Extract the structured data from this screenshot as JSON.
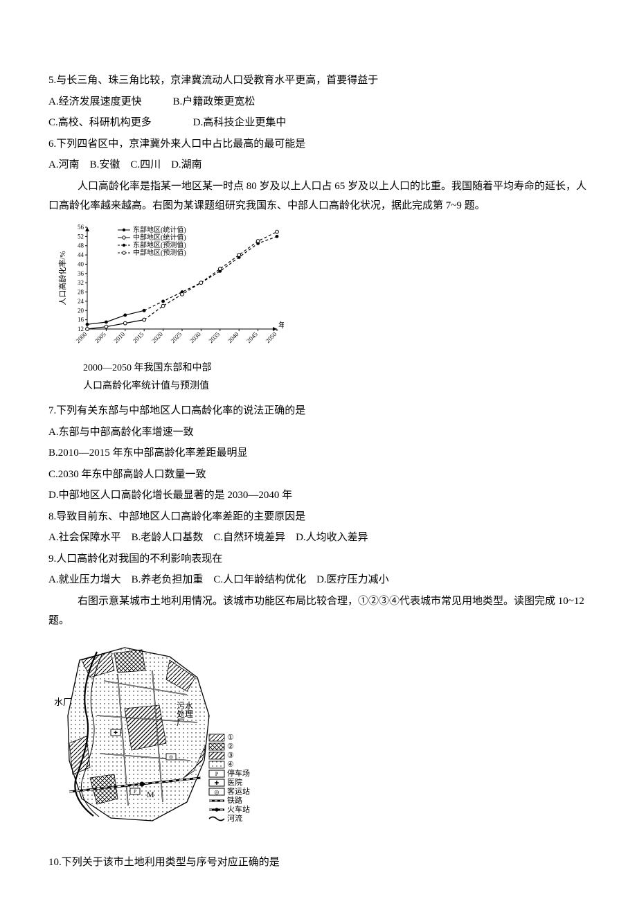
{
  "q5": {
    "stem": "5.与长三角、珠三角比较，京津冀流动人口受教育水平更高，首要得益于",
    "optAB": "A.经济发展速度更快　　　B.户籍政策更宽松",
    "optCD": "C.高校、科研机构更多　　　　D.高科技企业更集中"
  },
  "q6": {
    "stem": "6.下列四省区中，京津冀外来人口中占比最高的最可能是",
    "opts": "A.河南　B.安徽　C.四川　D.湖南"
  },
  "passage1": "人口高龄化率是指某一地区某一时点 80 岁及以上人口占 65 岁及以上人口的比重。我国随着平均寿命的延长，人口高龄化率越来越高。右图为某课题组研究我国东、中部人口高龄化状况，据此完成第 7~9 题。",
  "chart": {
    "type": "line",
    "y_label": "人口高龄化率/%",
    "x_label": "年份",
    "x_ticks": [
      "2000",
      "2005",
      "2010",
      "2015",
      "2020",
      "2025",
      "2030",
      "2035",
      "2040",
      "2045",
      "2050"
    ],
    "y_ticks": [
      12,
      16,
      20,
      24,
      28,
      32,
      36,
      40,
      44,
      48,
      52,
      56
    ],
    "ylim": [
      12,
      56
    ],
    "legend": [
      {
        "label": "东部地区(统计值)",
        "marker": "filled-circle",
        "dash": "solid"
      },
      {
        "label": "中部地区(统计值)",
        "marker": "open-circle",
        "dash": "solid"
      },
      {
        "label": "东部地区(预测值)",
        "marker": "filled-circle",
        "dash": "dashed"
      },
      {
        "label": "中部地区(预测值)",
        "marker": "open-circle",
        "dash": "dashed"
      }
    ],
    "series": {
      "east_stat": {
        "years": [
          2000,
          2005,
          2010,
          2015
        ],
        "vals": [
          14,
          15,
          18,
          20
        ],
        "marker": "filled-circle",
        "dash": "solid"
      },
      "central_stat": {
        "years": [
          2000,
          2005,
          2010,
          2015
        ],
        "vals": [
          12,
          13,
          14.5,
          16
        ],
        "marker": "open-circle",
        "dash": "solid"
      },
      "east_pred": {
        "years": [
          2015,
          2020,
          2025,
          2030,
          2035,
          2040,
          2045,
          2050
        ],
        "vals": [
          20,
          24,
          28,
          32,
          37,
          43,
          49,
          52
        ],
        "marker": "filled-circle",
        "dash": "dashed"
      },
      "central_pred": {
        "years": [
          2015,
          2020,
          2025,
          2030,
          2035,
          2040,
          2045,
          2050
        ],
        "vals": [
          16,
          22,
          27,
          32,
          38,
          44,
          50,
          54
        ],
        "marker": "open-circle",
        "dash": "dashed"
      }
    },
    "colors": {
      "line": "#000000",
      "bg": "#ffffff",
      "axis": "#000000",
      "text": "#000000"
    },
    "caption_l1": "2000—2050 年我国东部和中部",
    "caption_l2": "人口高龄化率统计值与预测值"
  },
  "q7": {
    "stem": "7.下列有关东部与中部地区人口高龄化率的说法正确的是",
    "a": "A.东部与中部高龄化率增速一致",
    "b": "B.2010—2015 年东中部高龄化率差距最明显",
    "c": "C.2030 年东中部高龄人口数量一致",
    "d": "D.中部地区人口高龄化增长最显著的是 2030—2040 年"
  },
  "q8": {
    "stem": "8.导致目前东、中部地区人口高龄化率差距的主要原因是",
    "opts": "A.社会保障水平　B.老龄人口基数　C.自然环境差异　D.人均收入差异"
  },
  "q9": {
    "stem": "9.人口高龄化对我国的不利影响表现在",
    "opts": "A.就业压力增大　B.养老负担加重　C.人口年龄结构优化　D.医疗压力减小"
  },
  "passage2": "右图示意某城市土地利用情况。该城市功能区布局比较合理，①②③④代表城市常见用地类型。读图完成 10~12 题。",
  "map": {
    "type": "infographic",
    "labels": {
      "water_plant": "水厂",
      "sewage_plant": "污水\n处理\n厂",
      "M": "M"
    },
    "legend_items": [
      {
        "sym": "hatch-diag",
        "text": "①"
      },
      {
        "sym": "hatch-cross",
        "text": "②"
      },
      {
        "sym": "hatch-dense",
        "text": "③"
      },
      {
        "sym": "dots",
        "text": "④"
      },
      {
        "sym": "box-P",
        "text": "停车场"
      },
      {
        "sym": "box-plus",
        "text": "医院"
      },
      {
        "sym": "box-circles",
        "text": "客运站"
      },
      {
        "sym": "rail",
        "text": "铁路"
      },
      {
        "sym": "rail-dot",
        "text": "火车站"
      },
      {
        "sym": "river",
        "text": "河流"
      }
    ],
    "colors": {
      "stroke": "#000000",
      "fill": "#ffffff"
    }
  },
  "q10": {
    "stem": "10.下列关于该市土地利用类型与序号对应正确的是"
  }
}
